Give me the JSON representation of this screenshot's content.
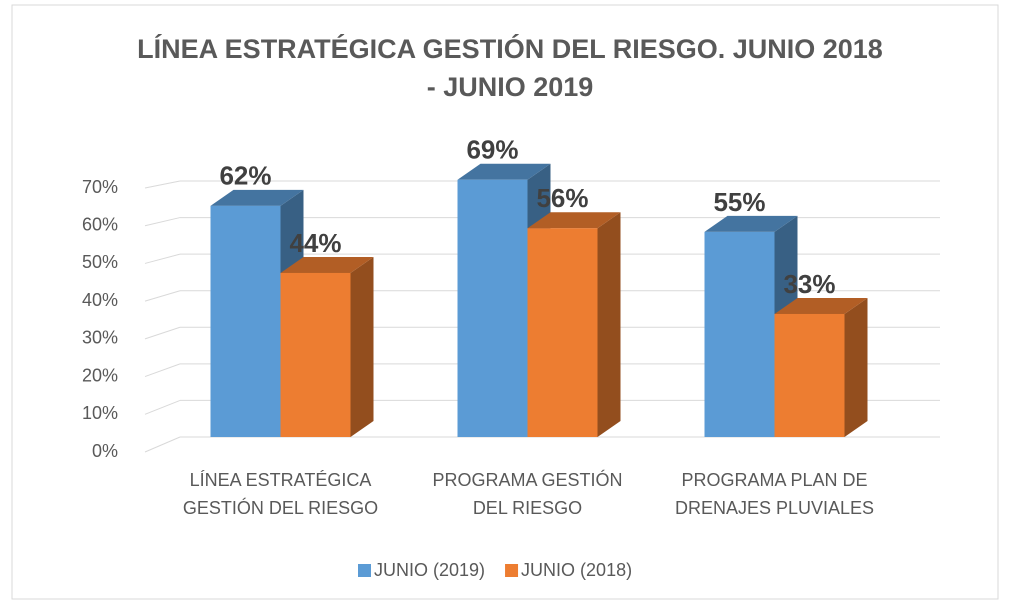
{
  "chart_data": {
    "type": "bar3d",
    "title": "LÍNEA ESTRATÉGICA GESTIÓN DEL RIESGO.  JUNIO 2018 - JUNIO 2019",
    "categories": [
      "LÍNEA ESTRATÉGICA GESTIÓN DEL RIESGO",
      "PROGRAMA GESTIÓN DEL RIESGO",
      "PROGRAMA PLAN DE DRENAJES PLUVIALES"
    ],
    "series": [
      {
        "name": "JUNIO (2019)",
        "color": "#5b9bd5",
        "values": [
          62,
          69,
          55
        ],
        "value_labels": [
          "62%",
          "69%",
          "55%"
        ]
      },
      {
        "name": "JUNIO (2018)",
        "color": "#ed7d31",
        "values": [
          44,
          56,
          33
        ],
        "value_labels": [
          "44%",
          "56%",
          "33%"
        ]
      }
    ],
    "ylim": [
      0,
      70
    ],
    "yticks": [
      {
        "value": 0,
        "label": "0%"
      },
      {
        "value": 10,
        "label": "10%"
      },
      {
        "value": 20,
        "label": "20%"
      },
      {
        "value": 30,
        "label": "30%"
      },
      {
        "value": 40,
        "label": "40%"
      },
      {
        "value": 50,
        "label": "50%"
      },
      {
        "value": 60,
        "label": "60%"
      },
      {
        "value": 70,
        "label": "70%"
      }
    ],
    "grid": true,
    "legend": "bottom"
  }
}
